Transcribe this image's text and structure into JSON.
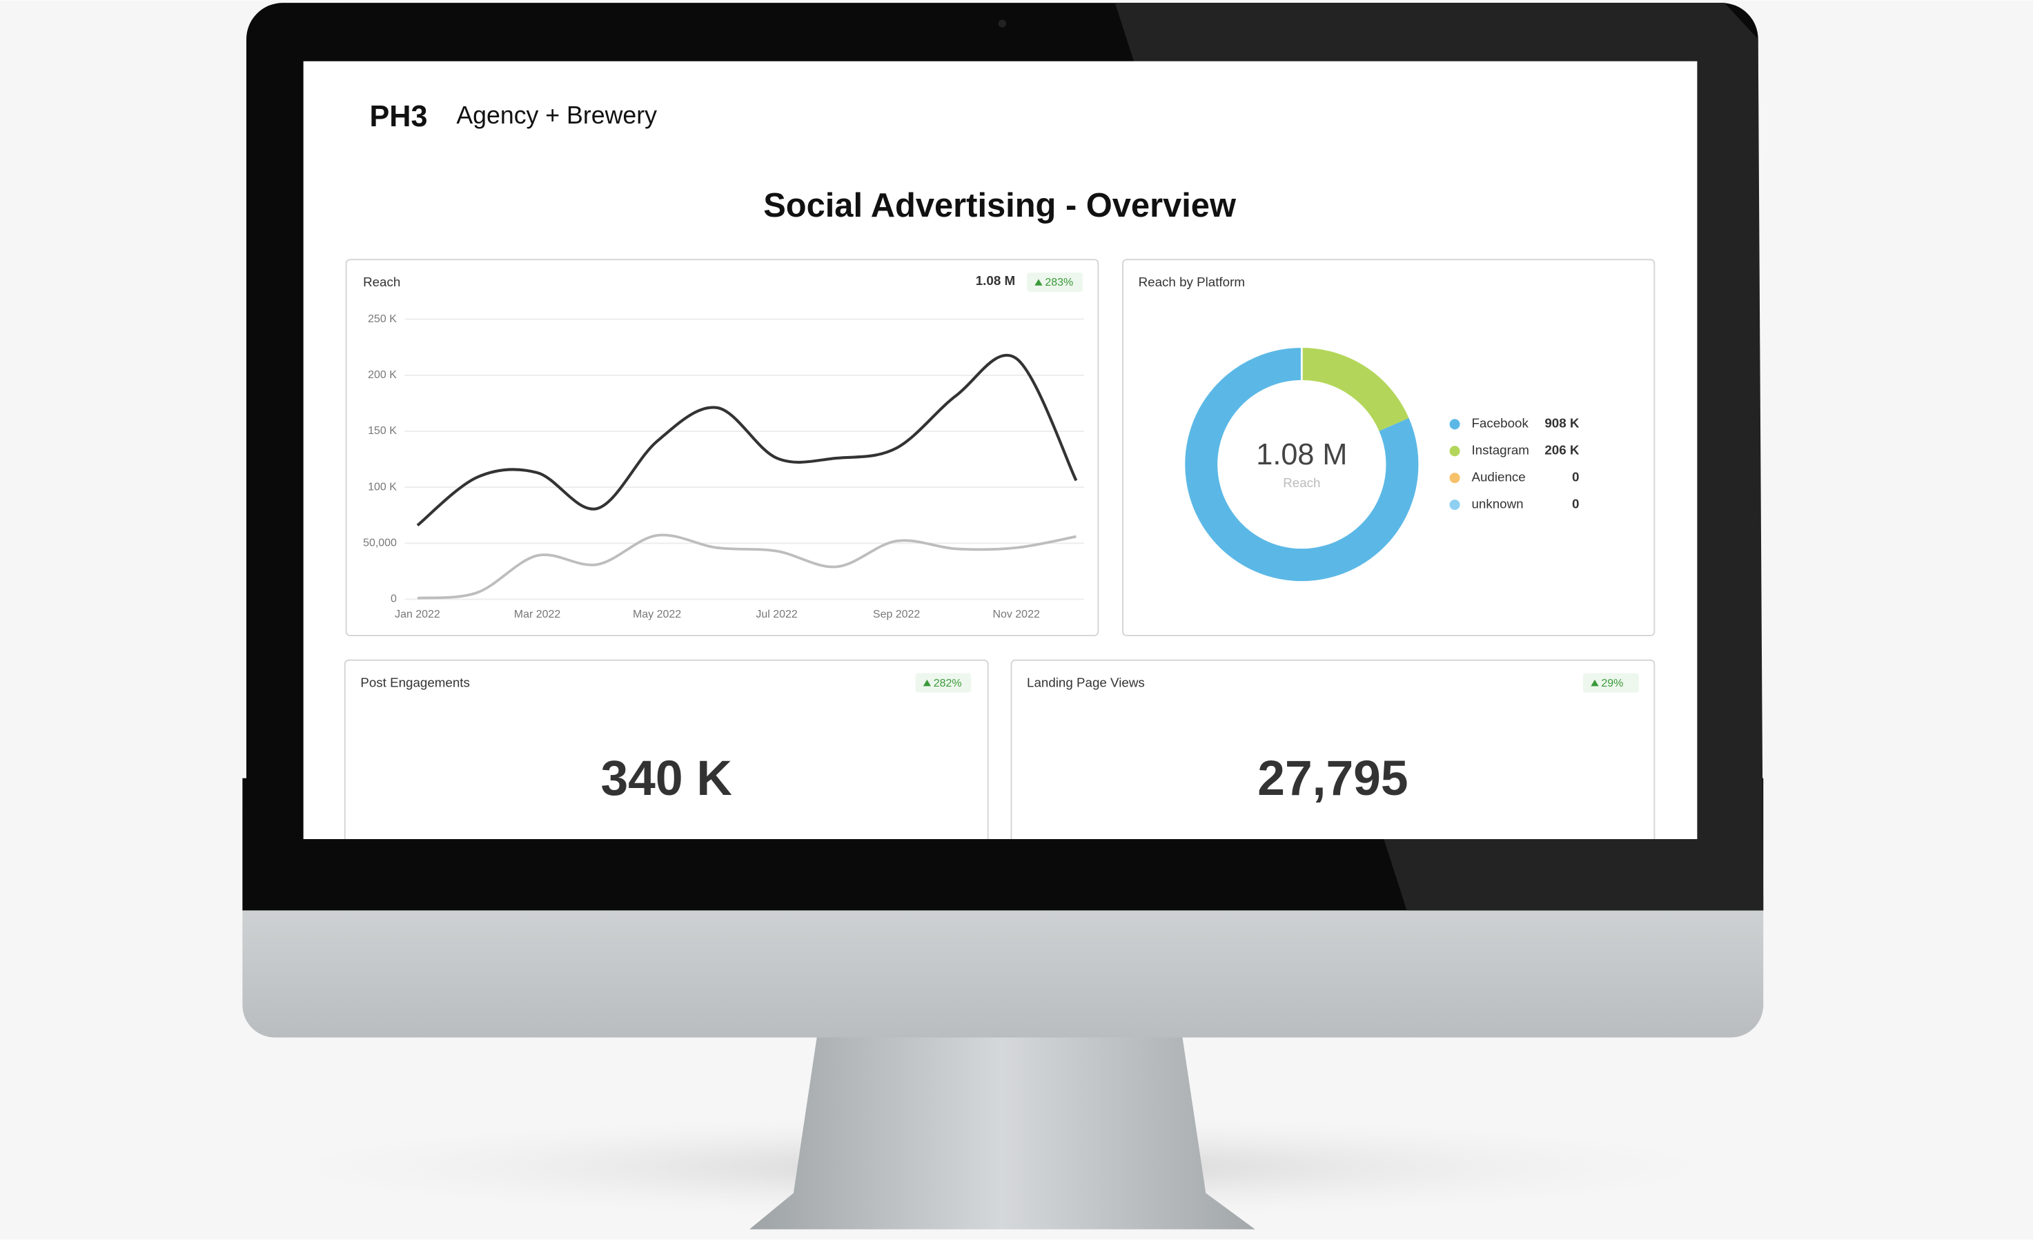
{
  "header": {
    "logo": "PH3",
    "brand": "Agency + Brewery"
  },
  "title": "Social Advertising - Overview",
  "chart_data": [
    {
      "type": "line",
      "title": "Reach",
      "total": "1.08 M",
      "change": "283%",
      "categories": [
        "Jan 2022",
        null,
        "Mar 2022",
        null,
        "May 2022",
        null,
        "Jul 2022",
        null,
        "Sep 2022",
        null,
        "Nov 2022",
        null
      ],
      "series": [
        {
          "color": "#333333",
          "values": [
            66000,
            109000,
            113000,
            81000,
            141000,
            171000,
            126000,
            126000,
            135000,
            182000,
            215000,
            106000
          ]
        },
        {
          "color": "#bdbdbd",
          "values": [
            1000,
            6000,
            39000,
            31000,
            57000,
            46000,
            43000,
            29000,
            52000,
            45000,
            46000,
            56000
          ]
        }
      ],
      "ylim": [
        0,
        250000
      ],
      "yticks": [
        0,
        {
          "value": 50000,
          "label": "50,000"
        },
        {
          "value": 100000,
          "label": "100 K"
        },
        {
          "value": 150000,
          "label": "150 K"
        },
        {
          "value": 200000,
          "label": "200 K"
        },
        {
          "value": 250000,
          "label": "250 K"
        }
      ],
      "grid": true
    },
    {
      "type": "pie",
      "title": "Reach by Platform",
      "center_value": "1.08 M",
      "center_label": "Reach",
      "categories": [
        "Facebook",
        "Instagram",
        "Audience",
        "unknown"
      ],
      "values": [
        908000,
        206000,
        0,
        0
      ],
      "value_labels": [
        "908 K",
        "206 K",
        "0",
        "0"
      ],
      "colors": [
        "#5bb8e6",
        "#b3d65a",
        "#f7c16b",
        "#8fd0f2"
      ]
    }
  ],
  "cards": [
    {
      "title": "Post Engagements",
      "value": "340 K",
      "change": "282%"
    },
    {
      "title": "Landing Page Views",
      "value": "27,795",
      "change": "29%"
    }
  ]
}
